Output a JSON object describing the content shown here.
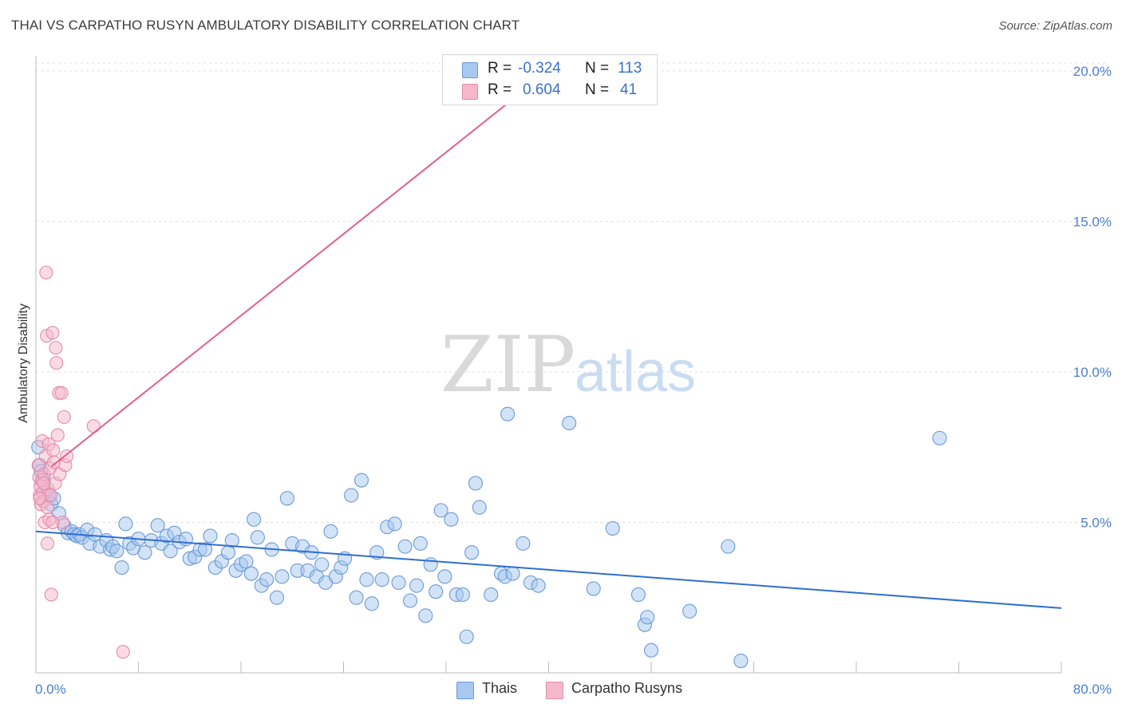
{
  "header": {
    "title": "THAI VS CARPATHO RUSYN AMBULATORY DISABILITY CORRELATION CHART",
    "source": "Source: ZipAtlas.com"
  },
  "watermark": {
    "zip": "ZIP",
    "atlas": "atlas"
  },
  "legend": {
    "rows": [
      {
        "r_label": "R =",
        "r_value": "-0.324",
        "n_label": "N =",
        "n_value": "113",
        "color": "#a8c8f0"
      },
      {
        "r_label": "R =",
        "r_value": "0.604",
        "n_label": "N =",
        "n_value": "41",
        "color": "#f5b8cb"
      }
    ]
  },
  "bottom_legend": [
    {
      "label": "Thais",
      "color": "#a8c8f0"
    },
    {
      "label": "Carpatho Rusyns",
      "color": "#f5b8cb"
    }
  ],
  "colors": {
    "blue_point": "#a8c8f0",
    "blue_stroke": "#6a9ad8",
    "blue_line": "#2e6fcf",
    "pink_point": "#f5b8cb",
    "pink_stroke": "#e58aa8",
    "pink_line": "#e0608a",
    "grid": "#dddddd",
    "tick_text": "#4a7fd0"
  },
  "chart_data": {
    "type": "scatter",
    "title": "THAI VS CARPATHO RUSYN AMBULATORY DISABILITY CORRELATION CHART",
    "ylabel": "Ambulatory Disability",
    "xlabel": "",
    "xlim": [
      0,
      80
    ],
    "ylim": [
      0,
      20.5
    ],
    "x_tick_labels": [
      "0.0%",
      "80.0%"
    ],
    "y_ticks": [
      5,
      10,
      15,
      20
    ],
    "y_tick_labels": [
      "5.0%",
      "10.0%",
      "15.0%",
      "20.0%"
    ],
    "grid": "horizontal dashed",
    "legend_position": "top-center",
    "series": [
      {
        "name": "Thais",
        "r": -0.324,
        "n": 113,
        "trend": {
          "x": [
            0,
            80
          ],
          "y": [
            4.7,
            2.15
          ]
        },
        "points": [
          [
            0.2,
            7.5
          ],
          [
            0.3,
            6.9
          ],
          [
            0.4,
            6.7
          ],
          [
            0.6,
            6.4
          ],
          [
            0.8,
            6.0
          ],
          [
            1.0,
            5.9
          ],
          [
            1.2,
            5.6
          ],
          [
            1.4,
            5.8
          ],
          [
            1.8,
            5.3
          ],
          [
            2.2,
            4.9
          ],
          [
            2.5,
            4.65
          ],
          [
            2.8,
            4.7
          ],
          [
            3.0,
            4.6
          ],
          [
            3.2,
            4.55
          ],
          [
            3.4,
            4.6
          ],
          [
            3.6,
            4.5
          ],
          [
            4.0,
            4.75
          ],
          [
            4.2,
            4.3
          ],
          [
            4.6,
            4.6
          ],
          [
            5.0,
            4.2
          ],
          [
            5.5,
            4.4
          ],
          [
            5.8,
            4.1
          ],
          [
            6.0,
            4.2
          ],
          [
            6.3,
            4.05
          ],
          [
            6.7,
            3.5
          ],
          [
            7.0,
            4.95
          ],
          [
            7.3,
            4.3
          ],
          [
            7.6,
            4.15
          ],
          [
            8.0,
            4.45
          ],
          [
            8.5,
            4.0
          ],
          [
            9.0,
            4.4
          ],
          [
            9.5,
            4.9
          ],
          [
            9.8,
            4.3
          ],
          [
            10.2,
            4.55
          ],
          [
            10.5,
            4.05
          ],
          [
            10.8,
            4.65
          ],
          [
            11.2,
            4.35
          ],
          [
            11.7,
            4.45
          ],
          [
            12.0,
            3.8
          ],
          [
            12.4,
            3.85
          ],
          [
            12.8,
            4.1
          ],
          [
            13.2,
            4.1
          ],
          [
            13.6,
            4.55
          ],
          [
            14.0,
            3.5
          ],
          [
            14.5,
            3.7
          ],
          [
            15.0,
            4.0
          ],
          [
            15.3,
            4.4
          ],
          [
            15.6,
            3.4
          ],
          [
            16.0,
            3.6
          ],
          [
            16.4,
            3.7
          ],
          [
            16.8,
            3.3
          ],
          [
            17.0,
            5.1
          ],
          [
            17.3,
            4.5
          ],
          [
            17.6,
            2.9
          ],
          [
            18.0,
            3.1
          ],
          [
            18.4,
            4.1
          ],
          [
            18.8,
            2.5
          ],
          [
            19.2,
            3.2
          ],
          [
            19.6,
            5.8
          ],
          [
            20.0,
            4.3
          ],
          [
            20.4,
            3.4
          ],
          [
            20.8,
            4.2
          ],
          [
            21.2,
            3.4
          ],
          [
            21.5,
            4.0
          ],
          [
            21.9,
            3.2
          ],
          [
            22.3,
            3.6
          ],
          [
            22.6,
            3.0
          ],
          [
            23.0,
            4.7
          ],
          [
            23.4,
            3.2
          ],
          [
            23.8,
            3.5
          ],
          [
            24.1,
            3.8
          ],
          [
            24.6,
            5.9
          ],
          [
            25.0,
            2.5
          ],
          [
            25.4,
            6.4
          ],
          [
            25.8,
            3.1
          ],
          [
            26.2,
            2.3
          ],
          [
            26.6,
            4.0
          ],
          [
            27.0,
            3.1
          ],
          [
            27.4,
            4.85
          ],
          [
            28.0,
            4.95
          ],
          [
            28.3,
            3.0
          ],
          [
            28.8,
            4.2
          ],
          [
            29.2,
            2.4
          ],
          [
            29.7,
            2.9
          ],
          [
            30.0,
            4.3
          ],
          [
            30.4,
            1.9
          ],
          [
            30.8,
            3.6
          ],
          [
            31.2,
            2.7
          ],
          [
            31.6,
            5.4
          ],
          [
            31.9,
            3.2
          ],
          [
            32.4,
            5.1
          ],
          [
            32.8,
            2.6
          ],
          [
            33.3,
            2.6
          ],
          [
            33.6,
            1.2
          ],
          [
            34.0,
            4.0
          ],
          [
            34.3,
            6.3
          ],
          [
            34.6,
            5.5
          ],
          [
            35.5,
            2.6
          ],
          [
            36.3,
            3.3
          ],
          [
            36.6,
            3.2
          ],
          [
            37.2,
            3.3
          ],
          [
            38.0,
            4.3
          ],
          [
            38.6,
            3.0
          ],
          [
            39.2,
            2.9
          ],
          [
            43.5,
            2.8
          ],
          [
            45.0,
            4.8
          ],
          [
            47.0,
            2.6
          ],
          [
            47.5,
            1.6
          ],
          [
            47.7,
            1.85
          ],
          [
            48.0,
            0.75
          ],
          [
            51.0,
            2.05
          ],
          [
            54.0,
            4.2
          ],
          [
            55.0,
            0.4
          ],
          [
            36.8,
            8.6
          ],
          [
            41.6,
            8.3
          ],
          [
            70.5,
            7.8
          ]
        ]
      },
      {
        "name": "Carpatho Rusyns",
        "r": 0.604,
        "n": 41,
        "trend": {
          "x": [
            1.2,
            38.5
          ],
          "y": [
            6.85,
            19.5
          ]
        },
        "points": [
          [
            0.2,
            6.9
          ],
          [
            0.25,
            6.5
          ],
          [
            0.3,
            5.9
          ],
          [
            0.35,
            6.2
          ],
          [
            0.4,
            5.6
          ],
          [
            0.45,
            6.4
          ],
          [
            0.5,
            7.7
          ],
          [
            0.55,
            6.0
          ],
          [
            0.6,
            5.7
          ],
          [
            0.65,
            6.6
          ],
          [
            0.7,
            5.0
          ],
          [
            0.75,
            7.2
          ],
          [
            0.8,
            13.3
          ],
          [
            0.85,
            11.2
          ],
          [
            0.9,
            4.3
          ],
          [
            0.95,
            6.1
          ],
          [
            1.0,
            7.6
          ],
          [
            1.05,
            5.1
          ],
          [
            1.1,
            6.8
          ],
          [
            1.15,
            5.9
          ],
          [
            1.2,
            2.6
          ],
          [
            1.3,
            11.3
          ],
          [
            1.35,
            7.4
          ],
          [
            1.4,
            7.0
          ],
          [
            1.5,
            6.3
          ],
          [
            1.55,
            10.8
          ],
          [
            1.6,
            10.3
          ],
          [
            1.7,
            7.9
          ],
          [
            1.8,
            9.3
          ],
          [
            1.85,
            6.6
          ],
          [
            2.0,
            9.3
          ],
          [
            2.1,
            5.0
          ],
          [
            2.2,
            8.5
          ],
          [
            2.3,
            6.9
          ],
          [
            2.4,
            7.2
          ],
          [
            4.5,
            8.2
          ],
          [
            6.8,
            0.7
          ],
          [
            0.3,
            5.8
          ],
          [
            0.6,
            6.3
          ],
          [
            0.9,
            5.5
          ],
          [
            1.3,
            5.0
          ]
        ]
      }
    ]
  }
}
